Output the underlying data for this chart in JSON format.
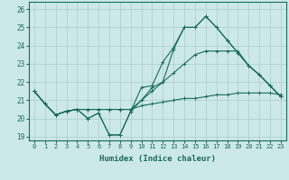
{
  "xlabel": "Humidex (Indice chaleur)",
  "bg_color": "#cce8e8",
  "line_color": "#1a6b5a",
  "grid_color": "#aacccc",
  "xlim": [
    -0.5,
    23.5
  ],
  "ylim": [
    18.8,
    26.4
  ],
  "yticks": [
    19,
    20,
    21,
    22,
    23,
    24,
    25,
    26
  ],
  "xticks": [
    0,
    1,
    2,
    3,
    4,
    5,
    6,
    7,
    8,
    9,
    10,
    11,
    12,
    13,
    14,
    15,
    16,
    17,
    18,
    19,
    20,
    21,
    22,
    23
  ],
  "lines": [
    {
      "x": [
        0,
        1,
        2,
        3,
        4,
        5,
        6,
        7,
        8,
        9,
        10,
        11,
        12,
        13,
        14,
        15,
        16,
        17,
        18,
        19,
        20,
        21,
        22,
        23
      ],
      "y": [
        21.5,
        20.8,
        20.2,
        20.4,
        20.5,
        20.5,
        20.5,
        20.5,
        20.5,
        20.5,
        20.7,
        20.8,
        20.9,
        21.0,
        21.1,
        21.1,
        21.2,
        21.3,
        21.3,
        21.4,
        21.4,
        21.4,
        21.4,
        21.3
      ]
    },
    {
      "x": [
        0,
        1,
        2,
        3,
        4,
        5,
        6,
        7,
        8,
        9,
        10,
        11,
        12,
        13,
        14,
        15,
        16,
        17,
        18,
        19,
        20,
        21,
        22,
        23
      ],
      "y": [
        21.5,
        20.8,
        20.2,
        20.4,
        20.5,
        20.5,
        20.5,
        20.5,
        20.5,
        20.5,
        21.0,
        21.5,
        22.0,
        22.5,
        23.0,
        23.5,
        23.7,
        23.7,
        23.7,
        23.7,
        22.9,
        22.4,
        21.8,
        21.2
      ]
    },
    {
      "x": [
        0,
        1,
        2,
        3,
        4,
        5,
        6,
        7,
        8,
        9,
        10,
        11,
        12,
        13,
        14,
        15,
        16,
        17,
        18,
        19,
        20,
        21,
        22,
        23
      ],
      "y": [
        21.5,
        20.8,
        20.2,
        20.4,
        20.5,
        20.0,
        20.3,
        19.1,
        19.1,
        20.4,
        21.7,
        21.8,
        23.1,
        23.9,
        25.0,
        25.0,
        25.6,
        25.0,
        24.3,
        23.6,
        22.9,
        22.4,
        21.8,
        21.2
      ]
    },
    {
      "x": [
        0,
        1,
        2,
        3,
        4,
        5,
        6,
        7,
        8,
        9,
        10,
        11,
        12,
        13,
        14,
        15,
        16,
        17,
        18,
        19,
        20,
        21,
        22,
        23
      ],
      "y": [
        21.5,
        20.8,
        20.2,
        20.4,
        20.5,
        20.0,
        20.3,
        19.1,
        19.1,
        20.4,
        21.0,
        21.7,
        22.0,
        23.8,
        25.0,
        25.0,
        25.6,
        25.0,
        24.3,
        23.6,
        22.9,
        22.4,
        21.8,
        21.2
      ]
    }
  ]
}
